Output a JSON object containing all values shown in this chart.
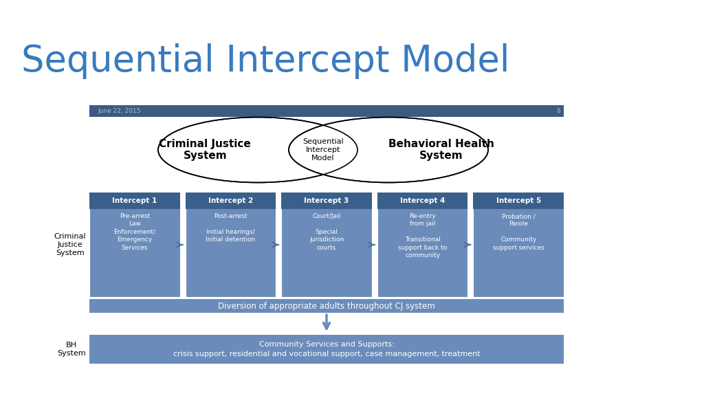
{
  "title": "Sequential Intercept Model",
  "title_color": "#3a7abf",
  "title_fontsize": 38,
  "bg_color": "#ffffff",
  "header_bar_color": "#3d5a80",
  "header_bar_text": "June 22, 2015",
  "header_bar_number": "8",
  "header_bar_text_color": "#aabbcc",
  "box_fill_color": "#6b8cba",
  "box_header_color": "#3a5f8a",
  "arrow_color": "#4a6fa5",
  "intercepts": [
    {
      "title": "Intercept 1",
      "body": "Pre-arrest\nLaw\nEnforcement/\nEmergency\nServices"
    },
    {
      "title": "Intercept 2",
      "body": "Post-arrest\n\nInitial hearings/\nInitial detention"
    },
    {
      "title": "Intercept 3",
      "body": "Court/Jail\n\nSpecial\njurisdiction\ncourts"
    },
    {
      "title": "Intercept 4",
      "body": "Re-entry\nfrom jail\n\nTransitional\nsupport back to\ncommunity"
    },
    {
      "title": "Intercept 5",
      "body": "Probation /\nParole\n\nCommunity\nsupport services"
    }
  ],
  "cj_label": "Criminal\nJustice\nSystem",
  "bh_label": "BH\nSystem",
  "diversion_text": "Diversion of appropriate adults throughout CJ system",
  "community_text": "Community Services and Supports:\ncrisis support, residential and vocational support, case management, treatment",
  "ellipse_left_text": "Criminal Justice\nSystem",
  "ellipse_center_text": "Sequential\nIntercept\nModel",
  "ellipse_right_text": "Behavioral Health\nSystem",
  "fig_width": 10.24,
  "fig_height": 5.76,
  "dpi": 100
}
